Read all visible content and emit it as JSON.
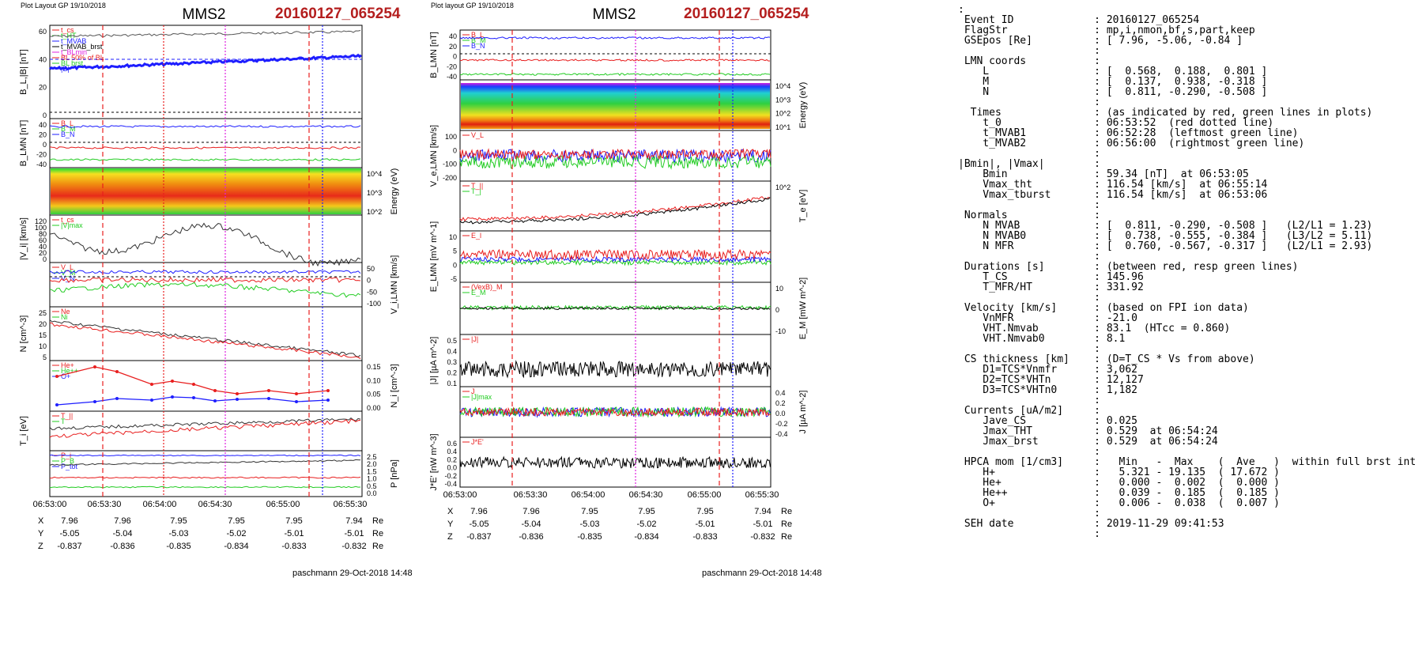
{
  "plots": [
    {
      "header": "Plot Layout GP 19/10/2018",
      "spacecraft": "MMS2",
      "event": "20160127_065254",
      "footer": "paschmann 29-Oct-2018 14:48",
      "time_ticks": [
        "06:53:00",
        "06:53:30",
        "06:54:00",
        "06:54:30",
        "06:55:00",
        "06:55:30"
      ],
      "ephem_rows": [
        {
          "label": "X",
          "values": [
            "7.96",
            "7.96",
            "7.95",
            "7.95",
            "7.95",
            "7.94"
          ],
          "unit": "Re"
        },
        {
          "label": "Y",
          "values": [
            "-5.05",
            "-5.04",
            "-5.03",
            "-5.02",
            "-5.01",
            "-5.01"
          ],
          "unit": "Re"
        },
        {
          "label": "Z",
          "values": [
            "-0.837",
            "-0.836",
            "-0.835",
            "-0.834",
            "-0.833",
            "-0.832"
          ],
          "unit": "Re"
        }
      ],
      "panels": [
        {
          "ylabel": "B_L,|B| [nT]",
          "side": "left",
          "ticks": [
            "60",
            "40",
            "20",
            "0"
          ],
          "legend": [
            "t_cs",
            "t_HT",
            "t_MVAB",
            "t_MVAB_brst",
            "t_BLmin",
            "BL 50% of BL",
            "BL brst",
            "|B|"
          ]
        },
        {
          "ylabel": "B_LMN [nT]",
          "side": "left",
          "ticks": [
            "40",
            "20",
            "0",
            "-20",
            "-40"
          ],
          "legend": [
            "B_L",
            "B_M",
            "B_N"
          ]
        },
        {
          "ylabel": "Energy (eV)",
          "side": "right",
          "ticks": [
            "10^4",
            "10^3",
            "10^2"
          ],
          "legend": []
        },
        {
          "ylabel": "|V_i| [km/s]",
          "side": "left",
          "ticks": [
            "120",
            "100",
            "80",
            "60",
            "40",
            "20",
            "0"
          ],
          "legend": [
            "t_cs",
            "|V|max"
          ]
        },
        {
          "ylabel": "V_i,LMN [km/s]",
          "side": "right",
          "ticks": [
            "50",
            "0",
            "-50",
            "-100"
          ],
          "legend": [
            "V_L",
            "V_M",
            "V_N"
          ]
        },
        {
          "ylabel": "N [cm^-3]",
          "side": "left",
          "ticks": [
            "25",
            "20",
            "15",
            "10",
            "5"
          ],
          "legend": [
            "Ne",
            "Ni"
          ]
        },
        {
          "ylabel": "N_i [cm^-3]",
          "side": "right",
          "ticks": [
            "0.15",
            "0.10",
            "0.05",
            "0.00"
          ],
          "legend": [
            "He+",
            "He++",
            "O+"
          ]
        },
        {
          "ylabel": "T_i [eV]",
          "side": "left",
          "ticks": [],
          "legend": [
            "T_||",
            "T"
          ]
        },
        {
          "ylabel": "P [nPa]",
          "side": "right",
          "ticks": [
            "2.5",
            "2.0",
            "1.5",
            "1.0",
            "0.5",
            "0.0"
          ],
          "legend": [
            "P_i",
            "P_B",
            "P_tot"
          ]
        }
      ]
    },
    {
      "header": "Plot layout GP 19/10/2018",
      "spacecraft": "MMS2",
      "event": "20160127_065254",
      "footer": "paschmann 29-Oct-2018 14:48",
      "time_ticks": [
        "06:53:00",
        "06:53:30",
        "06:54:00",
        "06:54:30",
        "06:55:00",
        "06:55:30"
      ],
      "ephem_rows": [
        {
          "label": "X",
          "values": [
            "7.96",
            "7.96",
            "7.95",
            "7.95",
            "7.95",
            "7.94"
          ],
          "unit": "Re"
        },
        {
          "label": "Y",
          "values": [
            "-5.05",
            "-5.04",
            "-5.03",
            "-5.02",
            "-5.01",
            "-5.01"
          ],
          "unit": "Re"
        },
        {
          "label": "Z",
          "values": [
            "-0.837",
            "-0.836",
            "-0.835",
            "-0.834",
            "-0.833",
            "-0.832"
          ],
          "unit": "Re"
        }
      ],
      "panels": [
        {
          "ylabel": "B_LMN [nT]",
          "side": "left",
          "ticks": [
            "40",
            "20",
            "0",
            "-20",
            "-40"
          ],
          "legend": [
            "B_L",
            "B_M",
            "B_N"
          ]
        },
        {
          "ylabel": "Energy (eV)",
          "side": "right",
          "ticks": [
            "10^4",
            "10^3",
            "10^2",
            "10^1"
          ],
          "legend": []
        },
        {
          "ylabel": "V_e,LMN [km/s]",
          "side": "left",
          "ticks": [
            "100",
            "0",
            "-100",
            "-200"
          ],
          "legend": [
            "V_L"
          ]
        },
        {
          "ylabel": "T_e [eV]",
          "side": "right",
          "ticks": [
            "10^2"
          ],
          "legend": [
            "T_||",
            "T_|"
          ]
        },
        {
          "ylabel": "E_LMN [mV m^-1]",
          "side": "left",
          "ticks": [
            "10",
            "5",
            "0",
            "-5"
          ],
          "legend": [
            "E_l"
          ]
        },
        {
          "ylabel": "E_M [mW m^-2]",
          "side": "right",
          "ticks": [
            "10",
            "0",
            "-10"
          ],
          "legend": [
            "(VexB)_M",
            "E_M"
          ]
        },
        {
          "ylabel": "|J| [µA m^-2]",
          "side": "left",
          "ticks": [
            "0.5",
            "0.4",
            "0.3",
            "0.2",
            "0.1"
          ],
          "legend": [
            "|J|"
          ]
        },
        {
          "ylabel": "J [µA m^-2]",
          "side": "right",
          "ticks": [
            "0.4",
            "0.2",
            "0.0",
            "-0.2",
            "-0.4"
          ],
          "legend": [
            "J",
            "|J|max"
          ]
        },
        {
          "ylabel": "J*E' [nW m^-3]",
          "side": "left",
          "ticks": [
            "0.6",
            "0.4",
            "0.2",
            "0.0",
            "-0.2",
            "-0.4"
          ],
          "legend": [
            "J*E'"
          ]
        }
      ]
    }
  ],
  "summary_lines": [
    ":",
    " Event ID             : 20160127_065254",
    " FlagStr              : mp,i,nmon,bf,s,part,keep",
    " GSEpos [Re]          : [ 7.96, -5.06, -0.84 ]",
    "                      :",
    " LMN coords           :",
    "    L                 : [  0.568,  0.188,  0.801 ]",
    "    M                 : [  0.137,  0.938, -0.318 ]",
    "    N                 : [  0.811, -0.290, -0.508 ]",
    "                      :",
    "  Times               : (as indicated by red, green lines in plots)",
    "    t_0               : 06:53:52  (red dotted line)",
    "    t_MVAB1           : 06:52:28  (leftmost green line)",
    "    t_MVAB2           : 06:56:00  (rightmost green line)",
    "                      :",
    "|Bmin|, |Vmax|        :",
    "    Bmin              : 59.34 [nT]  at 06:53:05",
    "    Vmax_tht          : 116.54 [km/s]  at 06:55:14",
    "    Vmax_tburst       : 116.54 [km/s]  at 06:53:06",
    "                      :",
    " Normals              :",
    "    N MVAB            : [  0.811, -0.290, -0.508 ]   (L2/L1 = 1.23)",
    "    N MVAB0           : [  0.738, -0.555, -0.384 ]   (L3/L2 = 5.11)",
    "    N MFR             : [  0.760, -0.567, -0.317 ]   (L2/L1 = 2.93)",
    "                      :",
    " Durations [s]        : (between red, resp green lines)",
    "    T_CS              : 145.96",
    "    T_MFR/HT          : 331.92",
    "                      :",
    " Velocity [km/s]      : (based on FPI ion data)",
    "    VnMFR             : -21.0",
    "    VHT.Nmvab         : 83.1  (HTcc = 0.860)",
    "    VHT.Nmvab0        : 8.1",
    "                      :",
    " CS thickness [km]    : (D=T_CS * Vs from above)",
    "    D1=TCS*Vnmfr      : 3,062",
    "    D2=TCS*VHTn       : 12,127",
    "    D3=TCS*VHTn0      : 1,182",
    "                      :",
    " Currents [uA/m2]     :",
    "    Jave_CS           : 0.025",
    "    Jmax_THT          : 0.529  at 06:54:24",
    "    Jmax_brst         : 0.529  at 06:54:24",
    "                      :",
    " HPCA mom [1/cm3]     :   Min   -  Max    (  Ave   )  within full brst int",
    "    H+                :   5.321 - 19.135  ( 17.672 )",
    "    He+               :   0.000 -  0.002  (  0.000 )",
    "    He++              :   0.039 -  0.185  (  0.185 )",
    "    O+                :   0.006 -  0.038  (  0.007 )",
    "                      :",
    " SEH date             : 2019-11-29 09:41:53",
    "                      :"
  ],
  "colors": {
    "red": "#e81e1e",
    "green": "#22cc22",
    "blue": "#1e1eff",
    "magenta": "#e020e0",
    "black": "#000000",
    "title_red": "#b41e1e"
  }
}
